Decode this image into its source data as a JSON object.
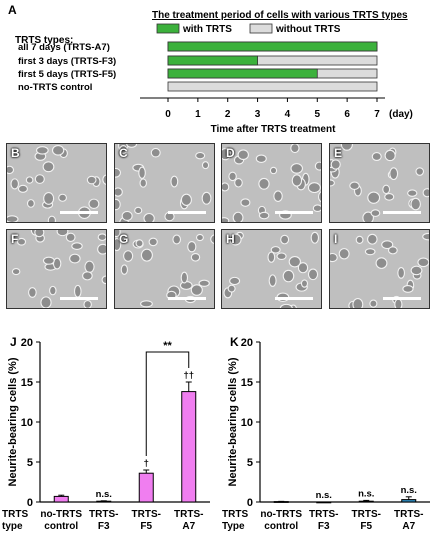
{
  "timeline": {
    "panel_letter": "A",
    "title": "The treatment period of cells with various TRTS types",
    "legend": [
      {
        "label": "with TRTS",
        "color": "#3cb13c"
      },
      {
        "label": "without TRTS",
        "color": "#dcdcdc"
      }
    ],
    "rows_header": "TRTS types:",
    "rows": [
      {
        "label": "all 7 days (TRTS-A7)",
        "with_days": 7
      },
      {
        "label": "first 3 days (TRTS-F3)",
        "with_days": 3
      },
      {
        "label": "first 5 days (TRTS-F5)",
        "with_days": 5
      },
      {
        "label": "no-TRTS control",
        "with_days": 0
      }
    ],
    "x_ticks": [
      "0",
      "1",
      "2",
      "3",
      "4",
      "5",
      "6",
      "7"
    ],
    "x_unit": "(day)",
    "xlabel": "Time after TRTS treatment",
    "total_days": 7
  },
  "micrographs": {
    "letters": [
      "B",
      "C",
      "D",
      "E",
      "F",
      "G",
      "H",
      "I"
    ],
    "background": "#bfbfbf"
  },
  "chart_data": [
    {
      "type": "bar",
      "panel_letter": "J",
      "categories": [
        "no-TRTS\ncontrol",
        "TRTS-\nF3",
        "TRTS-\nF5",
        "TRTS-\nA7"
      ],
      "values": [
        0.7,
        0.1,
        3.6,
        13.8
      ],
      "errors": [
        0.15,
        0.05,
        0.4,
        1.2
      ],
      "annotations": [
        "",
        "n.s.",
        "†",
        "††"
      ],
      "bracket": {
        "from": 2,
        "to": 3,
        "label": "**"
      },
      "color": "#f07ef0",
      "ylabel": "Neurite-bearing cells (%)",
      "ylim": [
        0,
        20
      ],
      "yticks": [
        0,
        5,
        10,
        15,
        20
      ],
      "xlabel": "TRTS\ntype"
    },
    {
      "type": "bar",
      "panel_letter": "K",
      "categories": [
        "no-TRTS\ncontrol",
        "TRTS-\nF3",
        "TRTS-\nF5",
        "TRTS-\nA7"
      ],
      "values": [
        0.05,
        0.0,
        0.1,
        0.3
      ],
      "errors": [
        0.03,
        0.0,
        0.1,
        0.35
      ],
      "annotations": [
        "",
        "n.s.",
        "n.s.",
        "n.s."
      ],
      "color": "#2e8bc0",
      "ylabel": "Neurite-bearing cells (%)",
      "ylim": [
        0,
        20
      ],
      "yticks": [
        0,
        5,
        10,
        15,
        20
      ],
      "xlabel": "TRTS\nType"
    }
  ]
}
